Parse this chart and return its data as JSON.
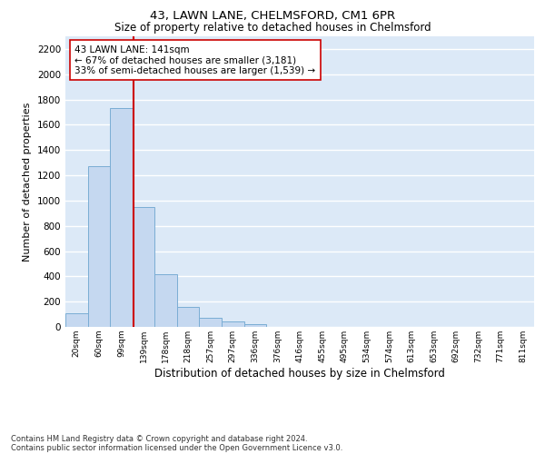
{
  "title": "43, LAWN LANE, CHELMSFORD, CM1 6PR",
  "subtitle": "Size of property relative to detached houses in Chelmsford",
  "xlabel": "Distribution of detached houses by size in Chelmsford",
  "ylabel": "Number of detached properties",
  "bin_labels": [
    "20sqm",
    "60sqm",
    "99sqm",
    "139sqm",
    "178sqm",
    "218sqm",
    "257sqm",
    "297sqm",
    "336sqm",
    "376sqm",
    "416sqm",
    "455sqm",
    "495sqm",
    "534sqm",
    "574sqm",
    "613sqm",
    "653sqm",
    "692sqm",
    "732sqm",
    "771sqm",
    "811sqm"
  ],
  "bar_values": [
    110,
    1270,
    1730,
    950,
    415,
    155,
    75,
    45,
    25,
    0,
    0,
    0,
    0,
    0,
    0,
    0,
    0,
    0,
    0,
    0,
    0
  ],
  "bar_color": "#c5d8f0",
  "bar_edge_color": "#7aadd4",
  "background_color": "#dce9f7",
  "grid_color": "#ffffff",
  "red_line_color": "#cc0000",
  "annotation_text": "43 LAWN LANE: 141sqm\n← 67% of detached houses are smaller (3,181)\n33% of semi-detached houses are larger (1,539) →",
  "annotation_box_color": "#ffffff",
  "annotation_box_edge": "#cc0000",
  "ylim": [
    0,
    2300
  ],
  "yticks": [
    0,
    200,
    400,
    600,
    800,
    1000,
    1200,
    1400,
    1600,
    1800,
    2000,
    2200
  ],
  "footnote1": "Contains HM Land Registry data © Crown copyright and database right 2024.",
  "footnote2": "Contains public sector information licensed under the Open Government Licence v3.0.",
  "fig_bg": "#ffffff",
  "title_fontsize": 9.5,
  "subtitle_fontsize": 8.5,
  "ylabel_fontsize": 8,
  "xlabel_fontsize": 8.5,
  "annotation_fontsize": 7.5,
  "footnote_fontsize": 6
}
